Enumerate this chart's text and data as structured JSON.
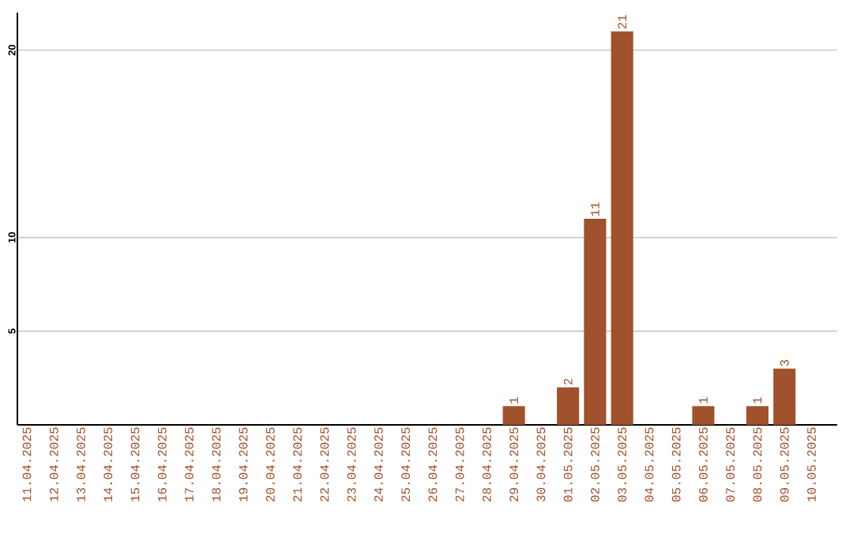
{
  "chart_data": {
    "type": "bar",
    "categories": [
      "11.04.2025",
      "12.04.2025",
      "13.04.2025",
      "14.04.2025",
      "15.04.2025",
      "16.04.2025",
      "17.04.2025",
      "18.04.2025",
      "19.04.2025",
      "20.04.2025",
      "21.04.2025",
      "22.04.2025",
      "23.04.2025",
      "24.04.2025",
      "25.04.2025",
      "26.04.2025",
      "27.04.2025",
      "28.04.2025",
      "29.04.2025",
      "30.04.2025",
      "01.05.2025",
      "02.05.2025",
      "03.05.2025",
      "04.05.2025",
      "05.05.2025",
      "06.05.2025",
      "07.05.2025",
      "08.05.2025",
      "09.05.2025",
      "10.05.2025"
    ],
    "values": [
      0,
      0,
      0,
      0,
      0,
      0,
      0,
      0,
      0,
      0,
      0,
      0,
      0,
      0,
      0,
      0,
      0,
      0,
      1,
      0,
      2,
      11,
      21,
      0,
      0,
      1,
      0,
      1,
      3,
      0
    ],
    "value_labels": [
      null,
      null,
      null,
      null,
      null,
      null,
      null,
      null,
      null,
      null,
      null,
      null,
      null,
      null,
      null,
      null,
      null,
      null,
      "1",
      null,
      "2",
      "11",
      "21",
      null,
      null,
      "1",
      null,
      "1",
      "3",
      null
    ],
    "color": "#a0522d",
    "ylim": [
      0,
      22
    ],
    "yticks": [
      5,
      10,
      20
    ],
    "grid": "y"
  }
}
